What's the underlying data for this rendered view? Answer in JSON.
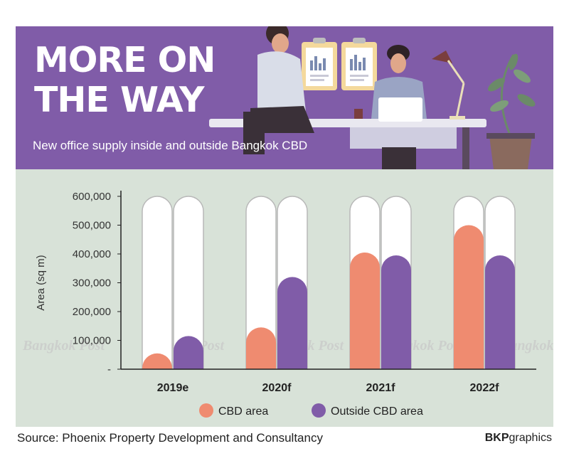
{
  "header": {
    "headline": [
      "MORE ON",
      "THE WAY"
    ],
    "subtitle": "New office supply inside and outside Bangkok CBD"
  },
  "footer": {
    "source": "Source: Phoenix Property Development and Consultancy",
    "credit_bold": "BKP",
    "credit_rest": "graphics"
  },
  "watermark": "Bangkok Post",
  "colors": {
    "banner": "#805ca8",
    "panel": "#d8e2d8",
    "cbd": "#ef8b70",
    "outside_cbd": "#805ca8"
  },
  "chart_data": {
    "type": "bar",
    "categories": [
      "2019e",
      "2020f",
      "2021f",
      "2022f"
    ],
    "series": [
      {
        "name": "CBD area",
        "values": [
          55000,
          145000,
          405000,
          500000
        ]
      },
      {
        "name": "Outside CBD area",
        "values": [
          115000,
          320000,
          395000,
          395000
        ]
      }
    ],
    "ylabel": "Area (sq m)",
    "ylim": [
      0,
      600000
    ],
    "yticks": [
      0,
      100000,
      200000,
      300000,
      400000,
      500000,
      600000
    ],
    "ytick_labels": [
      "-",
      "100,000",
      "200,000",
      "300,000",
      "400,000",
      "500,000",
      "600,000"
    ],
    "legend_position": "bottom"
  }
}
